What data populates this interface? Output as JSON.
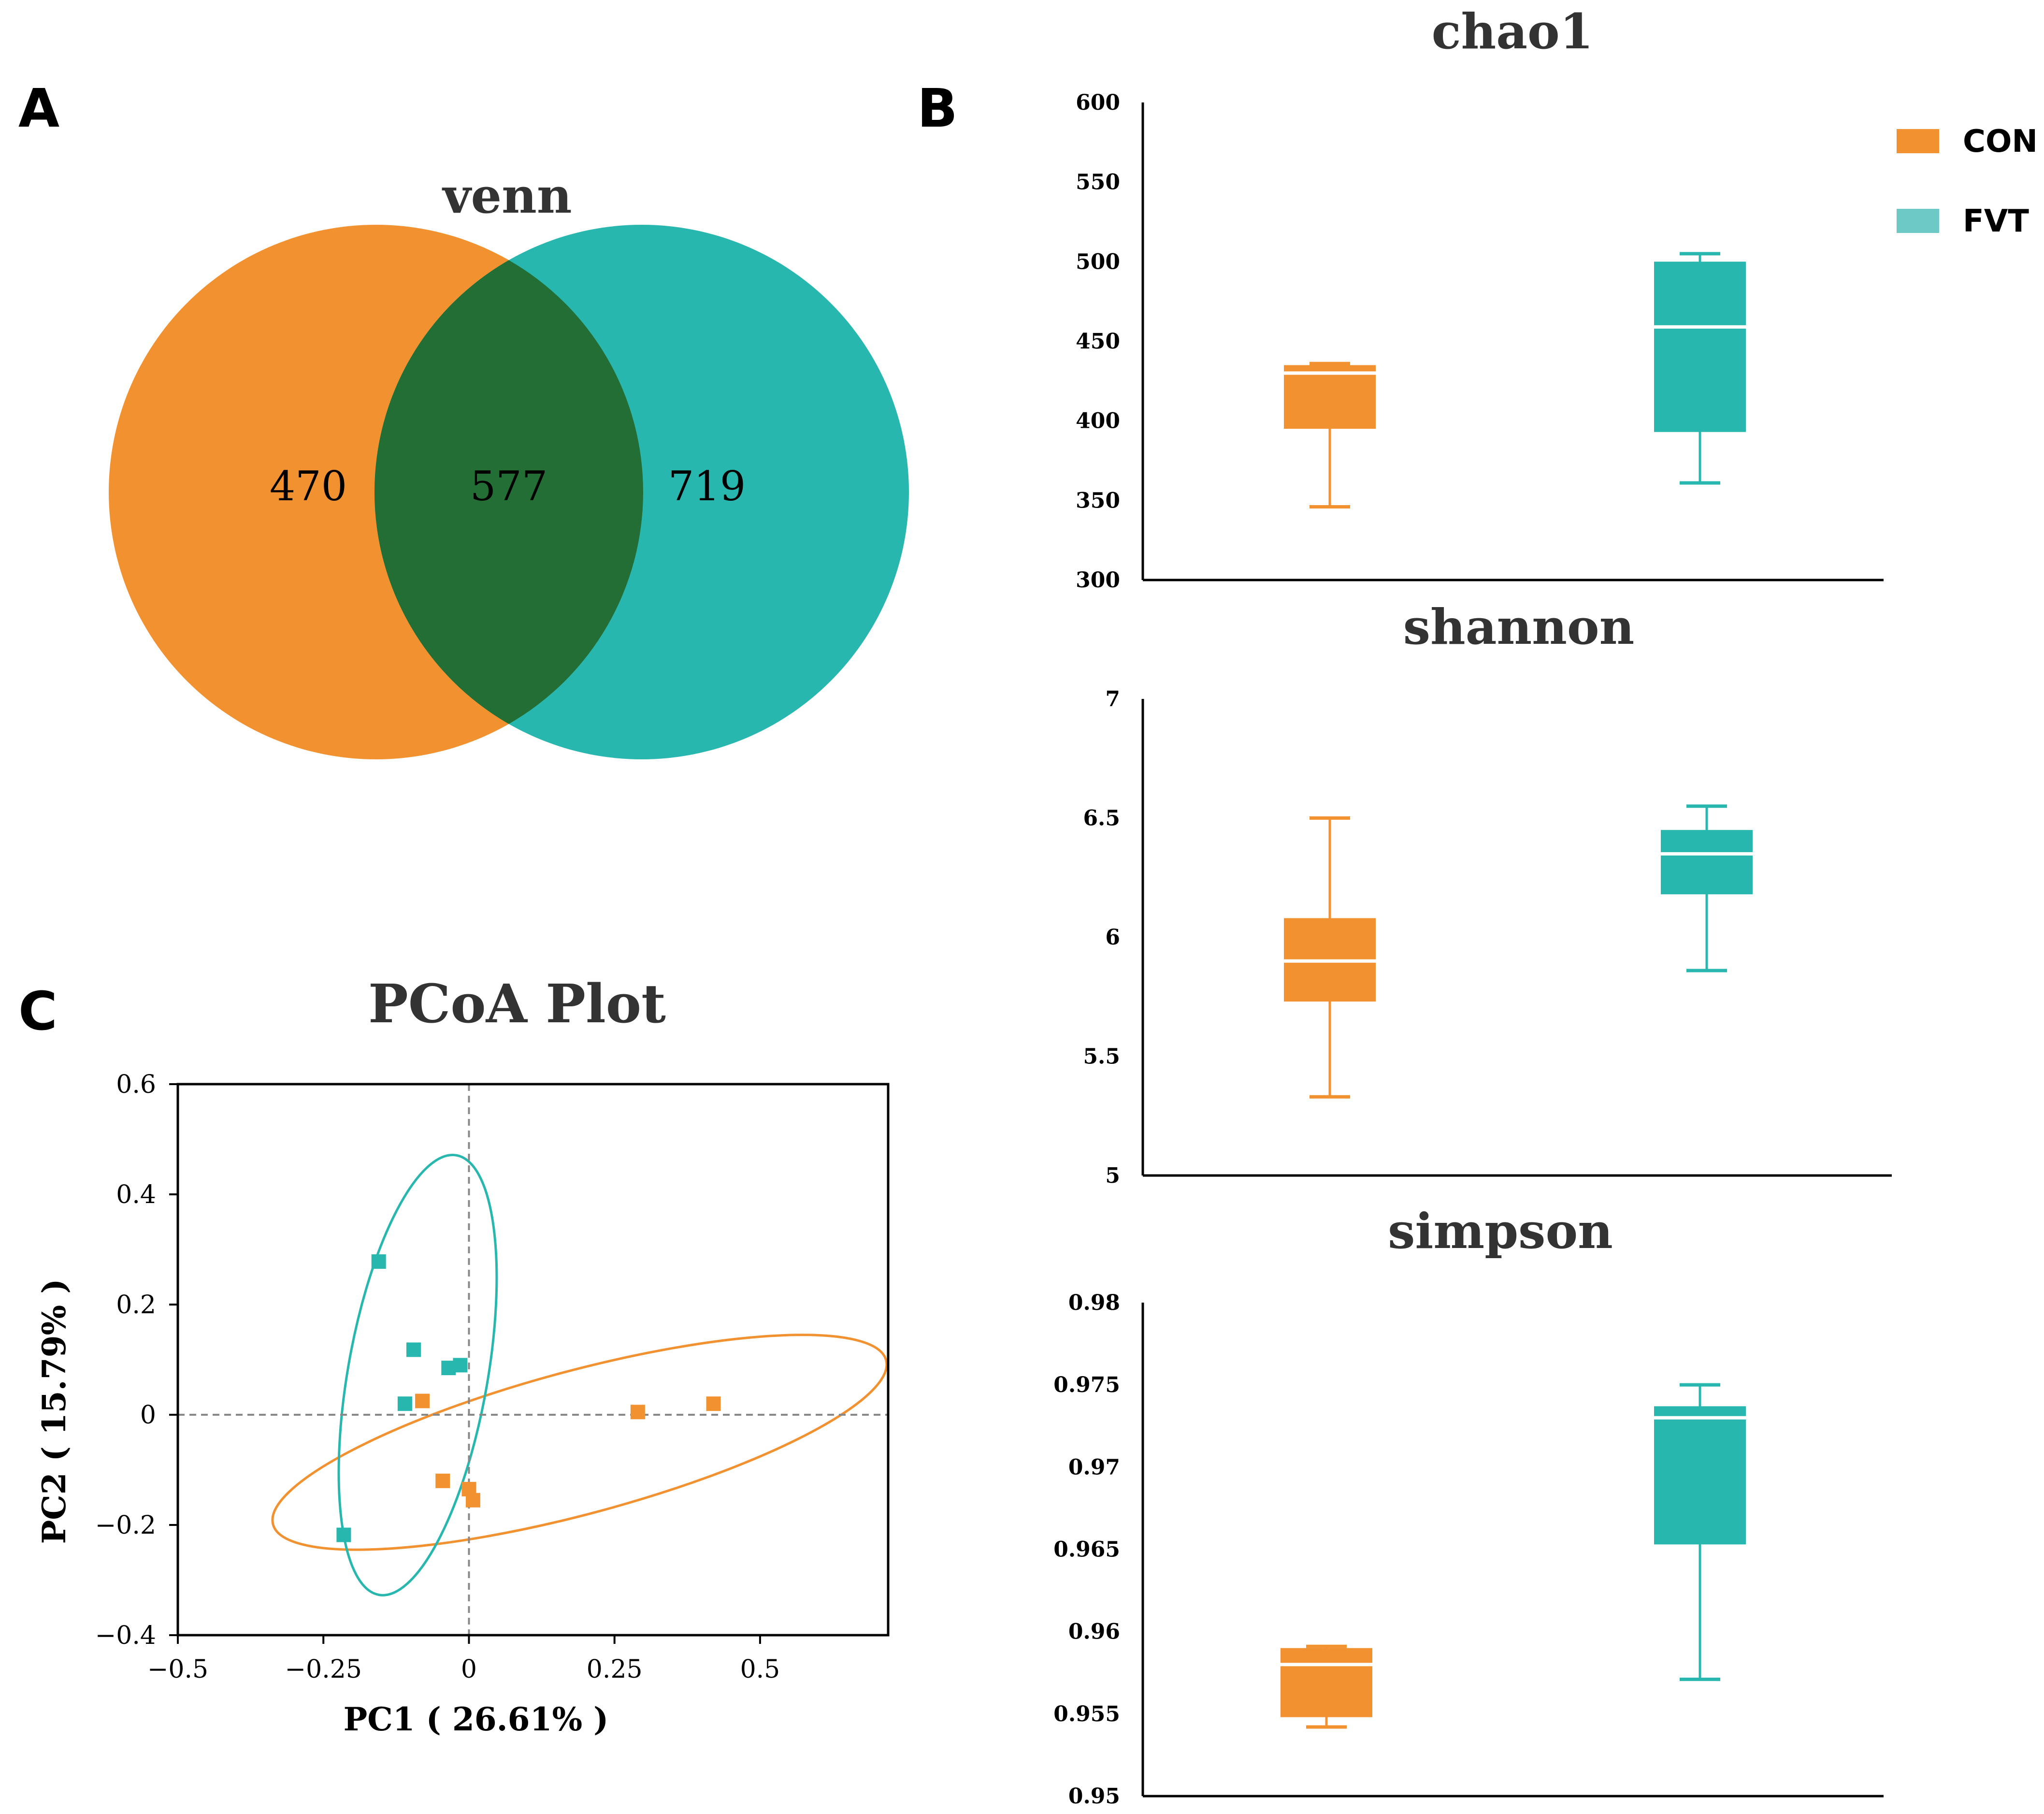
{
  "panels": {
    "a": "A",
    "b": "B",
    "c": "C"
  },
  "colors": {
    "con": "#F29130",
    "fvt": "#28B7AE",
    "overlap": "#226E35",
    "dashed": "#888888"
  },
  "legend": [
    {
      "label": "CON",
      "color": "#F29130"
    },
    {
      "label": "FVT",
      "color": "#6CC9C6"
    }
  ],
  "chart_data": [
    {
      "type": "venn",
      "title": "venn",
      "sets": [
        {
          "name": "CON",
          "only": 470
        },
        {
          "name": "FVT",
          "only": 719
        }
      ],
      "intersection": 577
    },
    {
      "type": "box",
      "title": "chao1",
      "ylim": [
        300,
        600
      ],
      "yticks": [
        "300",
        "350",
        "400",
        "450",
        "500",
        "550",
        "600"
      ],
      "groups": [
        {
          "name": "CON",
          "min": 346,
          "q1": 395,
          "median": 430,
          "q3": 435,
          "max": 436
        },
        {
          "name": "FVT",
          "min": 361,
          "q1": 393,
          "median": 459,
          "q3": 500,
          "max": 505
        }
      ]
    },
    {
      "type": "box",
      "title": "shannon",
      "ylim": [
        5,
        7
      ],
      "yticks": [
        "5",
        "5.5",
        "6",
        "6.5",
        "7"
      ],
      "groups": [
        {
          "name": "CON",
          "min": 5.33,
          "q1": 5.73,
          "median": 5.9,
          "q3": 6.08,
          "max": 6.5
        },
        {
          "name": "FVT",
          "min": 5.86,
          "q1": 6.18,
          "median": 6.35,
          "q3": 6.45,
          "max": 6.55
        }
      ]
    },
    {
      "type": "box",
      "title": "simpson",
      "ylim": [
        0.95,
        0.98
      ],
      "yticks": [
        "0.95",
        "0.955",
        "0.96",
        "0.965",
        "0.97",
        "0.975",
        "0.98"
      ],
      "groups": [
        {
          "name": "CON",
          "min": 0.9542,
          "q1": 0.9548,
          "median": 0.958,
          "q3": 0.959,
          "max": 0.9591
        },
        {
          "name": "FVT",
          "min": 0.9571,
          "q1": 0.9653,
          "median": 0.973,
          "q3": 0.9737,
          "max": 0.975
        }
      ]
    },
    {
      "type": "scatter",
      "title": "PCoA Plot",
      "xlabel": "PC1 ( 26.61% )",
      "ylabel": "PC2 ( 15.79% )",
      "xlim": [
        -0.5,
        0.72
      ],
      "ylim": [
        -0.4,
        0.6
      ],
      "xticks": [
        {
          "v": -0.5,
          "label": "−0.5"
        },
        {
          "v": -0.25,
          "label": "−0.25"
        },
        {
          "v": 0,
          "label": "0"
        },
        {
          "v": 0.25,
          "label": "0.25"
        },
        {
          "v": 0.5,
          "label": "0.5"
        }
      ],
      "yticks": [
        {
          "v": -0.4,
          "label": "−0.4"
        },
        {
          "v": -0.2,
          "label": "−0.2"
        },
        {
          "v": 0,
          "label": "0"
        },
        {
          "v": 0.2,
          "label": "0.2"
        },
        {
          "v": 0.4,
          "label": "0.4"
        },
        {
          "v": 0.6,
          "label": "0.6"
        }
      ],
      "series": [
        {
          "name": "CON",
          "points": [
            [
              -0.08,
              0.025
            ],
            [
              -0.045,
              -0.12
            ],
            [
              0.0,
              -0.135
            ],
            [
              0.007,
              -0.155
            ],
            [
              0.29,
              0.005
            ],
            [
              0.42,
              0.02
            ]
          ],
          "ellipse": {
            "cx": 0.19,
            "cy": -0.05,
            "rx": 0.545,
            "ry": 0.13,
            "angle": -15
          }
        },
        {
          "name": "FVT",
          "points": [
            [
              -0.155,
              0.278
            ],
            [
              -0.095,
              0.118
            ],
            [
              -0.035,
              0.085
            ],
            [
              -0.015,
              0.09
            ],
            [
              -0.11,
              0.02
            ],
            [
              -0.215,
              -0.218
            ]
          ],
          "ellipse": {
            "cx": -0.088,
            "cy": 0.072,
            "rx": 0.12,
            "ry": 0.405,
            "angle": 10
          }
        }
      ]
    }
  ]
}
